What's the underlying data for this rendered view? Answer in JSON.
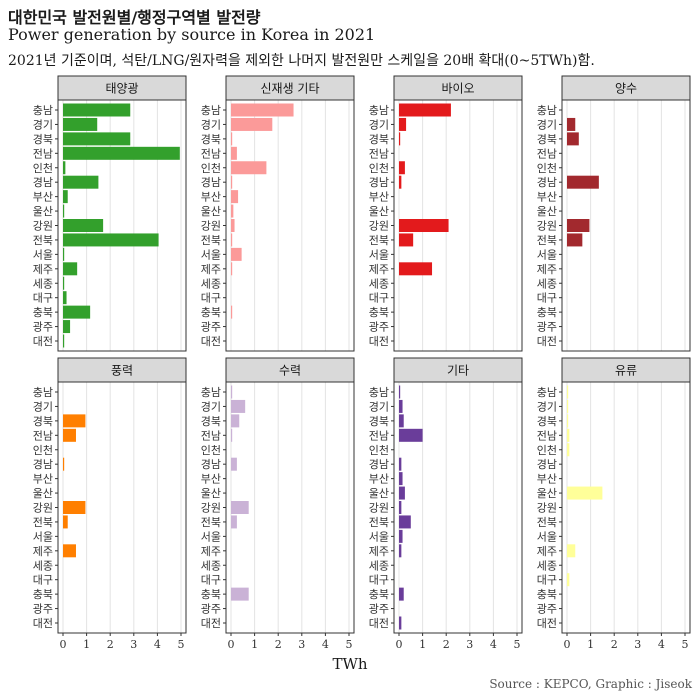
{
  "title": "대한민국 발전원별/행정구역별 발전량",
  "subtitle": "Power generation by source in Korea in 2021",
  "note": "2021년 기준이며, 석탄/LNG/원자력을 제외한 나머지 발전원만 스케일을 20배 확대(0~5TWh)함.",
  "caption": "Source : KEPCO, Graphic : Jiseok",
  "chart_data": {
    "type": "bar",
    "orientation": "horizontal",
    "layout": "facet-grid 2x4",
    "categories": [
      "충남",
      "경기",
      "경북",
      "전남",
      "인천",
      "경남",
      "부산",
      "울산",
      "강원",
      "전북",
      "서울",
      "제주",
      "세종",
      "대구",
      "충북",
      "광주",
      "대전"
    ],
    "xlabel": "TWh",
    "xlim": [
      0,
      5
    ],
    "xticks": [
      "0",
      "1",
      "2",
      "3",
      "4",
      "5"
    ],
    "grid": true,
    "series": [
      {
        "name": "태양광",
        "color": "#33a02c",
        "values": [
          2.85,
          1.45,
          2.85,
          4.95,
          0.1,
          1.5,
          0.2,
          0.05,
          1.7,
          4.05,
          0.05,
          0.6,
          0.05,
          0.15,
          1.15,
          0.3,
          0.05
        ]
      },
      {
        "name": "신재생 기타",
        "color": "#fb9a99",
        "values": [
          2.65,
          1.75,
          0.05,
          0.25,
          1.5,
          0.05,
          0.3,
          0.1,
          0.15,
          0.05,
          0.45,
          0.05,
          0.0,
          0.0,
          0.05,
          0.0,
          0.0
        ]
      },
      {
        "name": "바이오",
        "color": "#e31a1c",
        "values": [
          2.2,
          0.3,
          0.05,
          0.0,
          0.25,
          0.1,
          0.0,
          0.0,
          2.1,
          0.6,
          0.0,
          1.4,
          0.0,
          0.0,
          0.0,
          0.0,
          0.0
        ]
      },
      {
        "name": "양수",
        "color": "#a2292e",
        "values": [
          0.0,
          0.35,
          0.5,
          0.0,
          0.0,
          1.35,
          0.0,
          0.0,
          0.95,
          0.65,
          0.0,
          0.0,
          0.0,
          0.0,
          0.0,
          0.0,
          0.0
        ]
      },
      {
        "name": "풍력",
        "color": "#ff7f00",
        "values": [
          0.0,
          0.0,
          0.95,
          0.55,
          0.0,
          0.05,
          0.0,
          0.0,
          0.95,
          0.2,
          0.0,
          0.55,
          0.0,
          0.0,
          0.0,
          0.0,
          0.0
        ]
      },
      {
        "name": "수력",
        "color": "#cab2d6",
        "values": [
          0.05,
          0.6,
          0.35,
          0.05,
          0.0,
          0.25,
          0.0,
          0.0,
          0.75,
          0.25,
          0.0,
          0.0,
          0.0,
          0.0,
          0.75,
          0.0,
          0.0
        ]
      },
      {
        "name": "기타",
        "color": "#6a3d9a",
        "values": [
          0.05,
          0.15,
          0.2,
          1.0,
          0.0,
          0.1,
          0.15,
          0.25,
          0.1,
          0.5,
          0.15,
          0.1,
          0.0,
          0.0,
          0.2,
          0.0,
          0.1
        ]
      },
      {
        "name": "유류",
        "color": "#ffff99",
        "values": [
          0.05,
          0.05,
          0.05,
          0.1,
          0.1,
          0.0,
          0.0,
          1.5,
          0.0,
          0.0,
          0.0,
          0.35,
          0.0,
          0.1,
          0.0,
          0.0,
          0.0
        ]
      }
    ]
  }
}
